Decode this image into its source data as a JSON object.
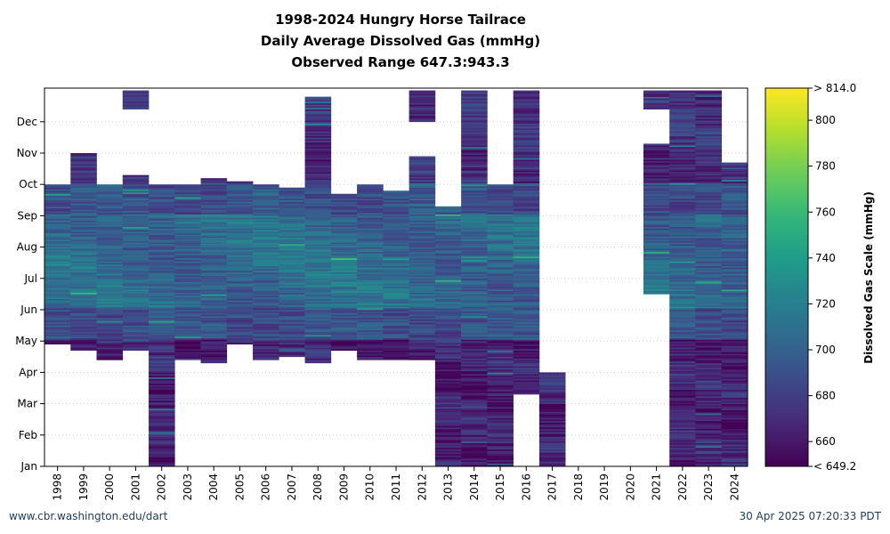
{
  "title_lines": [
    "1998-2024 Hungry Horse Tailrace",
    "Daily Average Dissolved Gas (mmHg)",
    "Observed Range 647.3:943.3"
  ],
  "footer": {
    "left": "www.cbr.washington.edu/dart",
    "right": "30 Apr 2025 07:20:33 PDT"
  },
  "chart_data": {
    "type": "heatmap",
    "x_categories": [
      "1998",
      "1999",
      "2000",
      "2001",
      "2002",
      "2003",
      "2004",
      "2005",
      "2006",
      "2007",
      "2008",
      "2009",
      "2010",
      "2011",
      "2012",
      "2013",
      "2014",
      "2015",
      "2016",
      "2017",
      "2018",
      "2019",
      "2020",
      "2021",
      "2022",
      "2023",
      "2024"
    ],
    "y_months": [
      "Jan",
      "Feb",
      "Mar",
      "Apr",
      "May",
      "Jun",
      "Jul",
      "Aug",
      "Sep",
      "Oct",
      "Nov",
      "Dec"
    ],
    "colorbar": {
      "label": "Dissolved Gas Scale (mmHg)",
      "min": 649.2,
      "max": 814.0,
      "ticks": [
        660,
        680,
        700,
        720,
        740,
        760,
        780,
        800
      ],
      "min_label": "< 649.2",
      "max_label": "> 814.0"
    },
    "coverage_months": {
      "1998": [
        [
          3.9,
          9.0
        ]
      ],
      "1999": [
        [
          3.7,
          10.0
        ]
      ],
      "2000": [
        [
          3.4,
          9.0
        ]
      ],
      "2001": [
        [
          3.7,
          9.3
        ],
        [
          11.4,
          12.0
        ]
      ],
      "2002": [
        [
          0.0,
          9.0
        ]
      ],
      "2003": [
        [
          3.4,
          9.0
        ]
      ],
      "2004": [
        [
          3.3,
          9.2
        ]
      ],
      "2005": [
        [
          3.9,
          9.1
        ]
      ],
      "2006": [
        [
          3.4,
          9.0
        ]
      ],
      "2007": [
        [
          3.5,
          8.9
        ]
      ],
      "2008": [
        [
          3.3,
          11.8
        ]
      ],
      "2009": [
        [
          3.7,
          8.7
        ]
      ],
      "2010": [
        [
          3.4,
          9.0
        ]
      ],
      "2011": [
        [
          3.4,
          8.8
        ]
      ],
      "2012": [
        [
          3.4,
          9.9
        ],
        [
          11.0,
          12.0
        ]
      ],
      "2013": [
        [
          0.0,
          8.3
        ]
      ],
      "2014": [
        [
          0.0,
          12.0
        ]
      ],
      "2015": [
        [
          0.0,
          9.0
        ]
      ],
      "2016": [
        [
          2.3,
          12.0
        ]
      ],
      "2017": [
        [
          0.0,
          3.0
        ]
      ],
      "2021": [
        [
          5.5,
          10.3
        ],
        [
          11.4,
          12.0
        ]
      ],
      "2022": [
        [
          0.0,
          12.0
        ]
      ],
      "2023": [
        [
          0.0,
          12.0
        ]
      ],
      "2024": [
        [
          0.0,
          9.7
        ]
      ]
    }
  }
}
